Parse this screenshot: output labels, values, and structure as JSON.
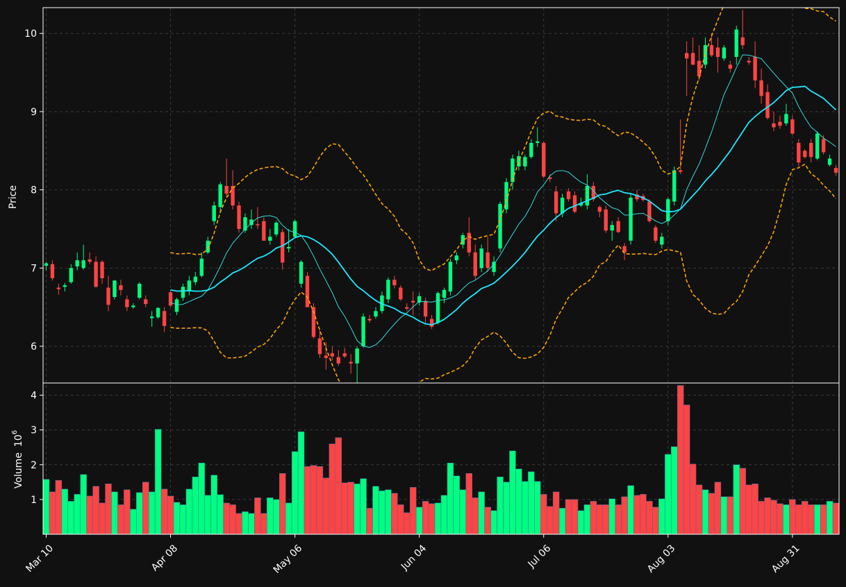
{
  "colors": {
    "background": "#111111",
    "up": "#00ff80",
    "down": "#ff4444",
    "fast_ma": "#33dddd",
    "slow_ma": "#1ee8ff",
    "bands": "#ffa500",
    "grid": "#3a3a3a",
    "text": "#ffffff"
  },
  "chart_data": {
    "type": "candlestick",
    "price_axis": {
      "label": "Price",
      "ylim": [
        5.53,
        10.33
      ],
      "ticks": [
        "6",
        "7",
        "8",
        "9",
        "10"
      ],
      "tick_values": [
        6,
        7,
        8,
        9,
        10
      ]
    },
    "volume_axis": {
      "label": "Volume",
      "exponent_label": "10",
      "exponent": "6",
      "ylim": [
        0,
        4.35
      ],
      "ticks": [
        "1",
        "2",
        "3",
        "4"
      ],
      "tick_values": [
        1,
        2,
        3,
        4
      ]
    },
    "x_axis": {
      "ticks": [
        {
          "label": "Mar 10",
          "index": 0
        },
        {
          "label": "Apr 08",
          "index": 20
        },
        {
          "label": "May 06",
          "index": 40
        },
        {
          "label": "Jun 04",
          "index": 60
        },
        {
          "label": "Jul 06",
          "index": 80
        },
        {
          "label": "Aug 03",
          "index": 100
        },
        {
          "label": "Aug 31",
          "index": 120
        }
      ],
      "count": 128
    },
    "grid": true,
    "candles": [
      {
        "o": 7.03,
        "h": 7.08,
        "l": 6.97,
        "c": 7.06
      },
      {
        "o": 7.05,
        "h": 7.1,
        "l": 6.84,
        "c": 6.87
      },
      {
        "o": 6.75,
        "h": 6.8,
        "l": 6.66,
        "c": 6.73
      },
      {
        "o": 6.76,
        "h": 6.81,
        "l": 6.7,
        "c": 6.78
      },
      {
        "o": 6.82,
        "h": 7.05,
        "l": 6.8,
        "c": 7.0
      },
      {
        "o": 7.02,
        "h": 7.2,
        "l": 6.97,
        "c": 7.1
      },
      {
        "o": 7.0,
        "h": 7.3,
        "l": 6.98,
        "c": 7.1
      },
      {
        "o": 7.11,
        "h": 7.2,
        "l": 7.05,
        "c": 7.08
      },
      {
        "o": 7.08,
        "h": 7.15,
        "l": 6.75,
        "c": 6.76
      },
      {
        "o": 7.08,
        "h": 7.1,
        "l": 6.8,
        "c": 6.87
      },
      {
        "o": 6.75,
        "h": 6.9,
        "l": 6.45,
        "c": 6.53
      },
      {
        "o": 6.63,
        "h": 6.85,
        "l": 6.6,
        "c": 6.84
      },
      {
        "o": 6.78,
        "h": 6.85,
        "l": 6.65,
        "c": 6.72
      },
      {
        "o": 6.6,
        "h": 6.65,
        "l": 6.45,
        "c": 6.5
      },
      {
        "o": 6.5,
        "h": 6.55,
        "l": 6.48,
        "c": 6.52
      },
      {
        "o": 6.62,
        "h": 6.82,
        "l": 6.6,
        "c": 6.8
      },
      {
        "o": 6.6,
        "h": 6.65,
        "l": 6.5,
        "c": 6.54
      },
      {
        "o": 6.36,
        "h": 6.45,
        "l": 6.25,
        "c": 6.38
      },
      {
        "o": 6.37,
        "h": 6.5,
        "l": 6.35,
        "c": 6.49
      },
      {
        "o": 6.45,
        "h": 6.5,
        "l": 6.18,
        "c": 6.26
      },
      {
        "o": 6.69,
        "h": 6.72,
        "l": 6.5,
        "c": 6.52
      },
      {
        "o": 6.44,
        "h": 6.62,
        "l": 6.4,
        "c": 6.6
      },
      {
        "o": 6.62,
        "h": 6.8,
        "l": 6.58,
        "c": 6.76
      },
      {
        "o": 6.7,
        "h": 6.9,
        "l": 6.65,
        "c": 6.84
      },
      {
        "o": 6.82,
        "h": 6.95,
        "l": 6.78,
        "c": 6.89
      },
      {
        "o": 6.9,
        "h": 7.2,
        "l": 6.88,
        "c": 7.12
      },
      {
        "o": 7.2,
        "h": 7.4,
        "l": 7.18,
        "c": 7.35
      },
      {
        "o": 7.6,
        "h": 7.85,
        "l": 7.55,
        "c": 7.8
      },
      {
        "o": 7.78,
        "h": 8.1,
        "l": 7.7,
        "c": 8.07
      },
      {
        "o": 8.05,
        "h": 8.4,
        "l": 7.9,
        "c": 7.95
      },
      {
        "o": 8.05,
        "h": 8.25,
        "l": 7.75,
        "c": 7.8
      },
      {
        "o": 7.8,
        "h": 7.85,
        "l": 7.45,
        "c": 7.5
      },
      {
        "o": 7.48,
        "h": 7.7,
        "l": 7.45,
        "c": 7.65
      },
      {
        "o": 7.55,
        "h": 7.75,
        "l": 7.5,
        "c": 7.62
      },
      {
        "o": 7.56,
        "h": 7.78,
        "l": 7.5,
        "c": 7.55
      },
      {
        "o": 7.6,
        "h": 7.65,
        "l": 7.35,
        "c": 7.35
      },
      {
        "o": 7.35,
        "h": 7.5,
        "l": 7.3,
        "c": 7.4
      },
      {
        "o": 7.43,
        "h": 7.6,
        "l": 7.4,
        "c": 7.58
      },
      {
        "o": 7.46,
        "h": 7.5,
        "l": 6.98,
        "c": 7.07
      },
      {
        "o": 7.25,
        "h": 7.5,
        "l": 7.2,
        "c": 7.27
      },
      {
        "o": 7.4,
        "h": 7.62,
        "l": 7.38,
        "c": 7.6
      },
      {
        "o": 6.8,
        "h": 7.1,
        "l": 6.75,
        "c": 7.08
      },
      {
        "o": 6.9,
        "h": 6.95,
        "l": 6.5,
        "c": 6.5
      },
      {
        "o": 6.5,
        "h": 6.55,
        "l": 6.1,
        "c": 6.12
      },
      {
        "o": 6.1,
        "h": 6.2,
        "l": 5.85,
        "c": 5.9
      },
      {
        "o": 5.88,
        "h": 6.05,
        "l": 5.7,
        "c": 5.85
      },
      {
        "o": 5.91,
        "h": 6.0,
        "l": 5.82,
        "c": 5.87
      },
      {
        "o": 5.86,
        "h": 5.95,
        "l": 5.75,
        "c": 5.78
      },
      {
        "o": 5.91,
        "h": 5.98,
        "l": 5.85,
        "c": 5.87
      },
      {
        "o": 5.8,
        "h": 5.9,
        "l": 5.65,
        "c": 5.78
      },
      {
        "o": 5.78,
        "h": 6.0,
        "l": 5.53,
        "c": 5.97
      },
      {
        "o": 6.0,
        "h": 6.42,
        "l": 5.98,
        "c": 6.38
      },
      {
        "o": 6.35,
        "h": 6.4,
        "l": 6.3,
        "c": 6.33
      },
      {
        "o": 6.38,
        "h": 6.5,
        "l": 6.35,
        "c": 6.45
      },
      {
        "o": 6.45,
        "h": 6.7,
        "l": 6.42,
        "c": 6.65
      },
      {
        "o": 6.6,
        "h": 6.88,
        "l": 6.55,
        "c": 6.85
      },
      {
        "o": 6.85,
        "h": 6.9,
        "l": 6.74,
        "c": 6.78
      },
      {
        "o": 6.75,
        "h": 6.78,
        "l": 6.58,
        "c": 6.6
      },
      {
        "o": 6.5,
        "h": 6.55,
        "l": 6.45,
        "c": 6.48
      },
      {
        "o": 6.58,
        "h": 6.7,
        "l": 6.4,
        "c": 6.56
      },
      {
        "o": 6.56,
        "h": 6.68,
        "l": 6.52,
        "c": 6.64
      },
      {
        "o": 6.58,
        "h": 6.62,
        "l": 6.3,
        "c": 6.38
      },
      {
        "o": 6.35,
        "h": 6.4,
        "l": 6.22,
        "c": 6.25
      },
      {
        "o": 6.3,
        "h": 6.7,
        "l": 6.28,
        "c": 6.68
      },
      {
        "o": 6.62,
        "h": 6.75,
        "l": 6.55,
        "c": 6.72
      },
      {
        "o": 6.7,
        "h": 7.12,
        "l": 6.65,
        "c": 7.08
      },
      {
        "o": 7.1,
        "h": 7.2,
        "l": 7.05,
        "c": 7.16
      },
      {
        "o": 7.3,
        "h": 7.45,
        "l": 7.25,
        "c": 7.42
      },
      {
        "o": 7.45,
        "h": 7.65,
        "l": 7.15,
        "c": 7.2
      },
      {
        "o": 7.2,
        "h": 7.3,
        "l": 6.85,
        "c": 6.9
      },
      {
        "o": 7.0,
        "h": 7.3,
        "l": 6.95,
        "c": 7.25
      },
      {
        "o": 7.2,
        "h": 7.4,
        "l": 6.95,
        "c": 7.0
      },
      {
        "o": 6.95,
        "h": 7.15,
        "l": 6.9,
        "c": 7.08
      },
      {
        "o": 7.25,
        "h": 7.85,
        "l": 7.2,
        "c": 7.82
      },
      {
        "o": 7.75,
        "h": 8.15,
        "l": 7.7,
        "c": 8.1
      },
      {
        "o": 8.1,
        "h": 8.45,
        "l": 8.0,
        "c": 8.4
      },
      {
        "o": 8.3,
        "h": 8.5,
        "l": 8.25,
        "c": 8.43
      },
      {
        "o": 8.3,
        "h": 8.45,
        "l": 8.25,
        "c": 8.42
      },
      {
        "o": 8.42,
        "h": 8.65,
        "l": 8.4,
        "c": 8.6
      },
      {
        "o": 8.6,
        "h": 8.8,
        "l": 8.55,
        "c": 8.62
      },
      {
        "o": 8.6,
        "h": 8.62,
        "l": 8.15,
        "c": 8.17
      },
      {
        "o": 8.16,
        "h": 8.2,
        "l": 8.1,
        "c": 8.14
      },
      {
        "o": 7.98,
        "h": 8.05,
        "l": 7.6,
        "c": 7.7
      },
      {
        "o": 7.7,
        "h": 7.95,
        "l": 7.65,
        "c": 7.9
      },
      {
        "o": 7.98,
        "h": 8.02,
        "l": 7.85,
        "c": 7.88
      },
      {
        "o": 7.93,
        "h": 7.98,
        "l": 7.7,
        "c": 7.72
      },
      {
        "o": 7.8,
        "h": 7.9,
        "l": 7.78,
        "c": 7.83
      },
      {
        "o": 7.8,
        "h": 8.2,
        "l": 7.75,
        "c": 8.05
      },
      {
        "o": 8.05,
        "h": 8.1,
        "l": 7.85,
        "c": 7.88
      },
      {
        "o": 7.78,
        "h": 7.8,
        "l": 7.65,
        "c": 7.72
      },
      {
        "o": 7.75,
        "h": 7.8,
        "l": 7.45,
        "c": 7.48
      },
      {
        "o": 7.48,
        "h": 7.6,
        "l": 7.35,
        "c": 7.55
      },
      {
        "o": 7.6,
        "h": 7.65,
        "l": 7.45,
        "c": 7.46
      },
      {
        "o": 7.28,
        "h": 7.32,
        "l": 7.1,
        "c": 7.2
      },
      {
        "o": 7.35,
        "h": 7.95,
        "l": 7.3,
        "c": 7.9
      },
      {
        "o": 7.94,
        "h": 8.0,
        "l": 7.85,
        "c": 7.88
      },
      {
        "o": 7.92,
        "h": 7.95,
        "l": 7.85,
        "c": 7.87
      },
      {
        "o": 7.85,
        "h": 7.88,
        "l": 7.58,
        "c": 7.6
      },
      {
        "o": 7.52,
        "h": 7.55,
        "l": 7.32,
        "c": 7.35
      },
      {
        "o": 7.3,
        "h": 7.45,
        "l": 7.25,
        "c": 7.4
      },
      {
        "o": 7.6,
        "h": 7.9,
        "l": 7.55,
        "c": 7.88
      },
      {
        "o": 7.85,
        "h": 8.3,
        "l": 7.8,
        "c": 8.25
      },
      {
        "o": 8.25,
        "h": 8.9,
        "l": 8.2,
        "c": 8.23
      },
      {
        "o": 9.75,
        "h": 9.9,
        "l": 9.2,
        "c": 9.68
      },
      {
        "o": 9.75,
        "h": 9.95,
        "l": 9.6,
        "c": 9.6
      },
      {
        "o": 9.65,
        "h": 9.85,
        "l": 9.4,
        "c": 9.45
      },
      {
        "o": 9.6,
        "h": 9.95,
        "l": 9.55,
        "c": 9.85
      },
      {
        "o": 9.85,
        "h": 10.0,
        "l": 9.7,
        "c": 9.72
      },
      {
        "o": 9.82,
        "h": 9.95,
        "l": 9.5,
        "c": 9.7
      },
      {
        "o": 9.68,
        "h": 9.85,
        "l": 9.65,
        "c": 9.82
      },
      {
        "o": 9.6,
        "h": 9.65,
        "l": 9.5,
        "c": 9.55
      },
      {
        "o": 9.7,
        "h": 10.1,
        "l": 9.6,
        "c": 10.05
      },
      {
        "o": 9.95,
        "h": 10.3,
        "l": 9.8,
        "c": 9.85
      },
      {
        "o": 9.65,
        "h": 9.7,
        "l": 9.6,
        "c": 9.63
      },
      {
        "o": 9.7,
        "h": 9.9,
        "l": 9.3,
        "c": 9.4
      },
      {
        "o": 9.4,
        "h": 9.55,
        "l": 9.1,
        "c": 9.2
      },
      {
        "o": 9.25,
        "h": 9.35,
        "l": 8.9,
        "c": 8.92
      },
      {
        "o": 8.85,
        "h": 9.0,
        "l": 8.75,
        "c": 8.8
      },
      {
        "o": 8.87,
        "h": 8.95,
        "l": 8.78,
        "c": 8.82
      },
      {
        "o": 8.85,
        "h": 9.1,
        "l": 8.82,
        "c": 8.97
      },
      {
        "o": 8.9,
        "h": 8.95,
        "l": 8.7,
        "c": 8.72
      },
      {
        "o": 8.6,
        "h": 8.65,
        "l": 8.3,
        "c": 8.35
      },
      {
        "o": 8.5,
        "h": 8.52,
        "l": 8.4,
        "c": 8.42
      },
      {
        "o": 8.6,
        "h": 8.65,
        "l": 8.35,
        "c": 8.42
      },
      {
        "o": 8.4,
        "h": 8.75,
        "l": 8.38,
        "c": 8.72
      },
      {
        "o": 8.65,
        "h": 8.7,
        "l": 8.45,
        "c": 8.48
      },
      {
        "o": 8.32,
        "h": 8.45,
        "l": 8.3,
        "c": 8.4
      },
      {
        "o": 8.28,
        "h": 8.32,
        "l": 8.18,
        "c": 8.22
      }
    ],
    "volume": [
      1.58,
      1.22,
      1.55,
      1.3,
      0.95,
      1.15,
      1.72,
      1.1,
      1.38,
      0.9,
      1.45,
      1.22,
      0.85,
      1.28,
      0.72,
      1.2,
      1.5,
      1.22,
      3.02,
      1.3,
      1.1,
      0.92,
      0.85,
      1.3,
      1.65,
      2.05,
      1.12,
      1.7,
      1.14,
      0.9,
      0.85,
      0.6,
      0.65,
      0.6,
      1.05,
      0.6,
      1.05,
      1.0,
      1.75,
      0.9,
      2.38,
      2.95,
      1.95,
      1.98,
      1.95,
      1.62,
      2.6,
      2.78,
      1.48,
      1.5,
      1.45,
      1.6,
      0.75,
      1.38,
      1.25,
      1.28,
      1.18,
      0.85,
      0.62,
      1.35,
      0.78,
      0.95,
      0.88,
      0.9,
      1.12,
      2.05,
      1.68,
      1.28,
      1.75,
      1.05,
      1.22,
      0.78,
      0.68,
      1.65,
      1.5,
      2.4,
      1.88,
      1.52,
      1.8,
      1.52,
      1.15,
      0.8,
      1.22,
      0.75,
      1.0,
      1.0,
      0.68,
      0.85,
      0.95,
      0.85,
      0.85,
      1.02,
      0.85,
      1.08,
      1.4,
      1.12,
      1.15,
      0.95,
      0.78,
      1.02,
      2.3,
      2.52,
      4.28,
      3.72,
      2.02,
      1.42,
      1.28,
      1.18,
      1.5,
      1.08,
      1.08,
      2.0,
      1.9,
      1.42,
      1.45,
      0.95,
      1.05,
      0.98,
      0.88,
      0.85,
      1.0,
      0.85,
      0.95,
      0.85,
      0.85,
      0.85,
      0.95,
      0.9
    ],
    "series_start_index": {
      "moving_average_fast": 20,
      "moving_average_slow": 20,
      "bands": 20
    }
  }
}
